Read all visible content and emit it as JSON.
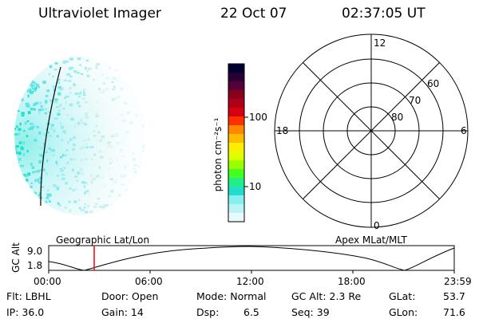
{
  "header": {
    "title": "Ultraviolet Imager",
    "date": "22 Oct 07",
    "time": "02:37:05 UT"
  },
  "colorbar": {
    "unit_label": "photon cm⁻²s⁻¹",
    "ticks": [
      "100",
      "10"
    ],
    "colors": [
      "#000033",
      "#2a0033",
      "#55003a",
      "#88001a",
      "#b00018",
      "#d80010",
      "#ff3000",
      "#ff8800",
      "#ffbb00",
      "#ffee00",
      "#ddff00",
      "#99ff00",
      "#44ff22",
      "#22ee88",
      "#22ddcc",
      "#88eeee",
      "#bbf4f4",
      "#e8fafa"
    ]
  },
  "polar": {
    "hour_labels": {
      "top": "12",
      "left": "18",
      "right": "6",
      "bottom": "0"
    },
    "lat_labels": [
      "60",
      "70",
      "80"
    ]
  },
  "timeline": {
    "ylabel": "GC Alt",
    "ytick_top": "9.0",
    "ytick_bottom": "1.8",
    "left_label": "Geographic Lat/Lon",
    "right_label": "Apex MLat/MLT",
    "xticks": [
      "00:00",
      "06:00",
      "12:00",
      "18:00",
      "23:59"
    ],
    "marker_color": "#ff0000"
  },
  "footer": {
    "flt": "Flt: LBHL",
    "ip": "IP: 36.0",
    "door": "Door: Open",
    "gain": "Gain: 14",
    "mode": "Mode: Normal",
    "dsp_label": "Dsp:",
    "dsp_value": "6.5",
    "gcalt": "GC Alt: 2.3 Re",
    "seq": "Seq: 39",
    "glat_label": "GLat:",
    "glat_value": "53.7",
    "glon_label": "GLon:",
    "glon_value": "71.6"
  }
}
